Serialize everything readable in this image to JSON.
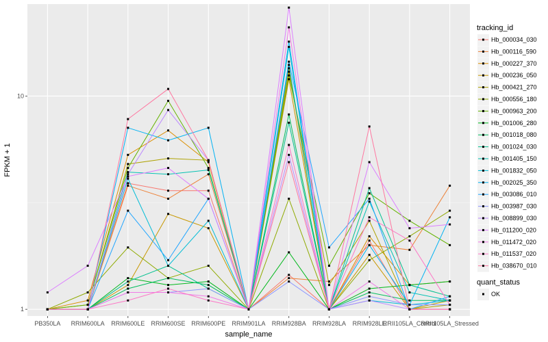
{
  "chart_data": {
    "type": "line",
    "xlabel": "sample_name",
    "ylabel": "FPKM + 1",
    "y_scale": "log10",
    "ylim": [
      0.93,
      27
    ],
    "y_ticks": [
      {
        "value": 1,
        "label": "1"
      },
      {
        "value": 10,
        "label": "10"
      }
    ],
    "grid": true,
    "legend_position": "right",
    "categories": [
      "PB350LA",
      "RRIM600LA",
      "RRIM600LE",
      "RRIM600SE",
      "RRIM600PE",
      "RRIM901LA",
      "RRIM928BA",
      "RRIM928LA",
      "RRIM928LE",
      "RRII105LA_Control",
      "RRII105LA_Stressed"
    ],
    "series": [
      {
        "name": "Hb_000034_030",
        "color": "#F8766D",
        "values": [
          1.0,
          1.0,
          3.9,
          3.6,
          3.6,
          1.0,
          1.45,
          1.0,
          2.1,
          1.0,
          1.0
        ]
      },
      {
        "name": "Hb_000116_590",
        "color": "#EC8239",
        "values": [
          1.0,
          1.0,
          3.8,
          3.3,
          4.3,
          1.0,
          1.4,
          1.35,
          2.0,
          1.9,
          3.8
        ]
      },
      {
        "name": "Hb_000227_370",
        "color": "#DB8E00",
        "values": [
          1.0,
          1.1,
          5.3,
          6.9,
          4.9,
          1.0,
          13.5,
          1.0,
          2.2,
          1.3,
          1.35
        ]
      },
      {
        "name": "Hb_000236_050",
        "color": "#C79800",
        "values": [
          1.0,
          1.0,
          1.3,
          2.8,
          2.4,
          1.0,
          12.0,
          1.0,
          1.8,
          1.0,
          1.1
        ]
      },
      {
        "name": "Hb_000421_270",
        "color": "#AEA200",
        "values": [
          1.0,
          1.05,
          4.8,
          5.1,
          5.0,
          1.0,
          13.0,
          1.3,
          2.6,
          1.0,
          1.05
        ]
      },
      {
        "name": "Hb_000556_180",
        "color": "#8FAA00",
        "values": [
          1.0,
          1.2,
          1.95,
          1.4,
          1.6,
          1.0,
          3.3,
          1.0,
          1.7,
          2.2,
          2.9
        ]
      },
      {
        "name": "Hb_000963_200",
        "color": "#64B200",
        "values": [
          1.0,
          1.05,
          4.6,
          9.5,
          4.6,
          1.0,
          12.5,
          1.6,
          3.5,
          2.6,
          2.0
        ]
      },
      {
        "name": "Hb_001006_280",
        "color": "#00B81B",
        "values": [
          1.0,
          1.0,
          1.4,
          1.3,
          1.35,
          1.0,
          1.85,
          1.0,
          1.25,
          1.3,
          1.35
        ]
      },
      {
        "name": "Hb_001018_080",
        "color": "#00BD5C",
        "values": [
          1.0,
          1.0,
          1.25,
          1.4,
          1.3,
          1.0,
          8.2,
          1.0,
          1.2,
          1.1,
          1.1
        ]
      },
      {
        "name": "Hb_001024_030",
        "color": "#00C08E",
        "values": [
          1.0,
          1.0,
          1.35,
          1.6,
          1.25,
          1.0,
          7.5,
          1.0,
          3.7,
          1.3,
          1.15
        ]
      },
      {
        "name": "Hb_001405_150",
        "color": "#00C1B2",
        "values": [
          1.0,
          1.0,
          4.4,
          4.3,
          4.5,
          1.0,
          14.0,
          1.0,
          3.2,
          1.2,
          1.1
        ]
      },
      {
        "name": "Hb_001832_050",
        "color": "#00BCD6",
        "values": [
          1.0,
          1.0,
          4.1,
          1.6,
          2.6,
          1.0,
          17.0,
          1.0,
          1.1,
          1.05,
          1.1
        ]
      },
      {
        "name": "Hb_002025_350",
        "color": "#00B2F3",
        "values": [
          1.0,
          1.0,
          7.1,
          6.2,
          7.1,
          1.0,
          18.0,
          1.0,
          2.0,
          1.05,
          2.7
        ]
      },
      {
        "name": "Hb_003086_010",
        "color": "#1FA5FF",
        "values": [
          1.0,
          1.0,
          2.9,
          1.7,
          3.3,
          1.0,
          14.5,
          1.95,
          3.3,
          1.0,
          1.15
        ]
      },
      {
        "name": "Hb_003987_030",
        "color": "#8D96FF",
        "values": [
          1.0,
          1.0,
          1.2,
          1.2,
          1.25,
          1.0,
          1.35,
          1.0,
          1.15,
          1.05,
          1.05
        ]
      },
      {
        "name": "Hb_008899_030",
        "color": "#BC88FF",
        "values": [
          1.0,
          1.0,
          4.3,
          8.6,
          5.0,
          1.0,
          5.3,
          1.0,
          1.1,
          1.0,
          1.0
        ]
      },
      {
        "name": "Hb_011200_020",
        "color": "#DC7FFF",
        "values": [
          1.2,
          1.6,
          4.2,
          4.6,
          3.3,
          1.0,
          26.0,
          1.0,
          4.9,
          2.4,
          2.5
        ]
      },
      {
        "name": "Hb_011472_020",
        "color": "#F07AE7",
        "values": [
          1.0,
          1.0,
          1.2,
          1.2,
          1.15,
          1.0,
          21.0,
          1.0,
          1.35,
          1.0,
          1.0
        ]
      },
      {
        "name": "Hb_011537_020",
        "color": "#FD76C6",
        "values": [
          1.0,
          1.0,
          1.1,
          1.25,
          1.1,
          1.0,
          5.9,
          1.0,
          2.7,
          2.1,
          1.05
        ]
      },
      {
        "name": "Hb_038670_010",
        "color": "#FF76A0",
        "values": [
          1.0,
          1.0,
          7.8,
          10.8,
          5.0,
          1.0,
          4.9,
          1.0,
          7.2,
          1.0,
          1.0
        ]
      }
    ],
    "legend": {
      "title": "tracking_id",
      "status_title": "quant_status",
      "status_items": [
        "OK"
      ]
    }
  }
}
